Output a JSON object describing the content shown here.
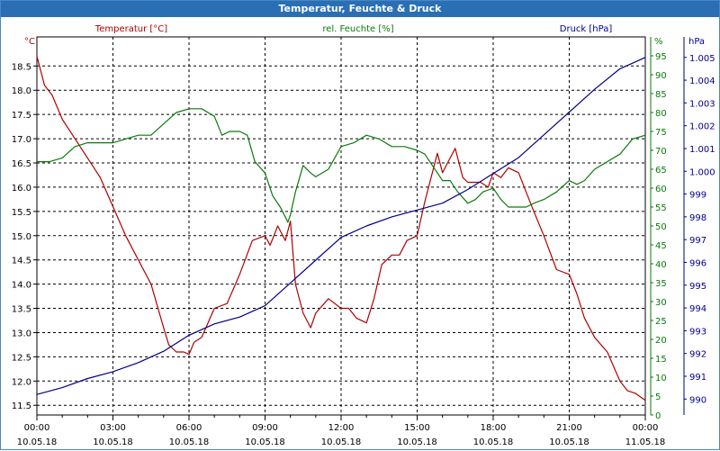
{
  "window": {
    "title": "Temperatur, Feuchte & Druck"
  },
  "colors": {
    "temperature": "#b00000",
    "humidity": "#0a7a0a",
    "pressure": "#00008b",
    "grid": "#000000",
    "titlebar": "#2a6fb3"
  },
  "chart_data": {
    "type": "line",
    "title": "Temperatur, Feuchte & Druck",
    "grid": true,
    "x_ticks": [
      {
        "hours": 0,
        "time": "00:00",
        "date": "10.05.18"
      },
      {
        "hours": 3,
        "time": "03:00",
        "date": "10.05.18"
      },
      {
        "hours": 6,
        "time": "06:00",
        "date": "10.05.18"
      },
      {
        "hours": 9,
        "time": "09:00",
        "date": "10.05.18"
      },
      {
        "hours": 12,
        "time": "12:00",
        "date": "10.05.18"
      },
      {
        "hours": 15,
        "time": "15:00",
        "date": "10.05.18"
      },
      {
        "hours": 18,
        "time": "18:00",
        "date": "10.05.18"
      },
      {
        "hours": 21,
        "time": "21:00",
        "date": "10.05.18"
      },
      {
        "hours": 24,
        "time": "00:00",
        "date": "11.05.18"
      }
    ],
    "xlim": [
      0,
      24
    ],
    "axes": {
      "temperature": {
        "label": "Temperatur [°C]",
        "unit": "°C",
        "ylim": [
          11.3,
          19.1
        ],
        "ticks": [
          "11.5",
          "12.0",
          "12.5",
          "13.0",
          "13.5",
          "14.0",
          "14.5",
          "15.0",
          "15.5",
          "16.0",
          "16.5",
          "17.0",
          "17.5",
          "18.0",
          "18.5"
        ]
      },
      "humidity": {
        "label": "rel. Feuchte [%]",
        "unit": "%",
        "ylim": [
          0,
          100
        ],
        "ticks": [
          "0",
          "5",
          "10",
          "15",
          "20",
          "25",
          "30",
          "35",
          "40",
          "45",
          "50",
          "55",
          "60",
          "65",
          "70",
          "75",
          "80",
          "85",
          "90",
          "95"
        ]
      },
      "pressure": {
        "label": "Druck [hPa]",
        "unit": "hPa",
        "ylim": [
          989.3,
          1005.9
        ],
        "ticks": [
          "990",
          "991",
          "992",
          "993",
          "994",
          "995",
          "996",
          "997",
          "998",
          "999",
          "1.000",
          "1.001",
          "1.002",
          "1.003",
          "1.004",
          "1.005"
        ]
      }
    },
    "series": [
      {
        "name": "Temperatur [°C]",
        "axis": "temperature",
        "x": [
          0,
          0.3,
          0.6,
          1,
          1.5,
          2,
          2.5,
          3,
          3.5,
          4,
          4.5,
          5,
          5.2,
          5.5,
          5.8,
          6,
          6.2,
          6.5,
          7,
          7.5,
          8,
          8.5,
          9,
          9.2,
          9.5,
          9.8,
          10,
          10.2,
          10.5,
          10.8,
          11,
          11.5,
          12,
          12.3,
          12.6,
          13,
          13.3,
          13.6,
          14,
          14.3,
          14.6,
          15,
          15.3,
          15.6,
          15.8,
          16,
          16.2,
          16.5,
          16.8,
          17,
          17.2,
          17.5,
          17.8,
          18,
          18.3,
          18.6,
          19,
          19.3,
          19.6,
          20,
          20.5,
          21,
          21.3,
          21.6,
          22,
          22.5,
          23,
          23.3,
          23.6,
          24
        ],
        "values": [
          18.7,
          18.1,
          17.9,
          17.4,
          17.0,
          16.6,
          16.2,
          15.6,
          15.0,
          14.5,
          14.0,
          13.1,
          12.75,
          12.6,
          12.6,
          12.55,
          12.8,
          12.9,
          13.5,
          13.6,
          14.2,
          14.9,
          15.0,
          14.8,
          15.2,
          14.9,
          15.3,
          14.0,
          13.4,
          13.1,
          13.4,
          13.7,
          13.5,
          13.5,
          13.3,
          13.2,
          13.7,
          14.4,
          14.6,
          14.6,
          14.9,
          15.0,
          15.7,
          16.3,
          16.7,
          16.3,
          16.5,
          16.8,
          16.2,
          16.1,
          16.1,
          16.1,
          16.0,
          16.3,
          16.2,
          16.4,
          16.3,
          15.9,
          15.5,
          15.0,
          14.3,
          14.2,
          13.8,
          13.3,
          12.9,
          12.6,
          12.0,
          11.8,
          11.75,
          11.6
        ]
      },
      {
        "name": "rel. Feuchte [%]",
        "axis": "humidity",
        "x": [
          0,
          0.5,
          1,
          1.5,
          2,
          2.5,
          3,
          3.5,
          4,
          4.5,
          5,
          5.5,
          6,
          6.5,
          7,
          7.3,
          7.6,
          8,
          8.3,
          8.6,
          9,
          9.3,
          9.6,
          9.9,
          10,
          10.2,
          10.5,
          10.8,
          11,
          11.5,
          12,
          12.5,
          13,
          13.5,
          14,
          14.5,
          15,
          15.3,
          15.6,
          16,
          16.3,
          16.6,
          17,
          17.3,
          17.6,
          18,
          18.3,
          18.6,
          19,
          19.3,
          19.6,
          20,
          20.5,
          21,
          21.3,
          21.6,
          22,
          22.5,
          23,
          23.5,
          24
        ],
        "values": [
          67,
          67,
          68,
          71,
          72,
          72,
          72,
          73,
          74,
          74,
          77,
          80,
          81,
          81,
          79,
          74,
          75,
          75,
          74,
          67,
          64,
          58,
          55,
          51,
          53,
          59,
          66,
          64,
          63,
          65,
          71,
          72,
          74,
          73,
          71,
          71,
          70,
          69,
          66,
          62,
          62,
          59,
          56,
          57,
          59,
          60,
          57,
          55,
          55,
          55,
          56,
          57,
          59,
          62,
          61,
          62,
          65,
          67,
          69,
          73,
          74
        ]
      },
      {
        "name": "Druck [hPa]",
        "axis": "pressure",
        "x": [
          0,
          1,
          2,
          3,
          4,
          5,
          6,
          7,
          8,
          9,
          10,
          11,
          12,
          13,
          14,
          15,
          16,
          17,
          18,
          19,
          20,
          21,
          22,
          23,
          24
        ],
        "values": [
          990.2,
          990.5,
          990.9,
          991.2,
          991.6,
          992.1,
          992.8,
          993.3,
          993.6,
          994.1,
          995.1,
          996.1,
          997.1,
          997.6,
          998.0,
          998.3,
          998.6,
          999.2,
          999.9,
          1000.6,
          1001.6,
          1002.6,
          1003.6,
          1004.5,
          1005.0
        ]
      }
    ]
  }
}
